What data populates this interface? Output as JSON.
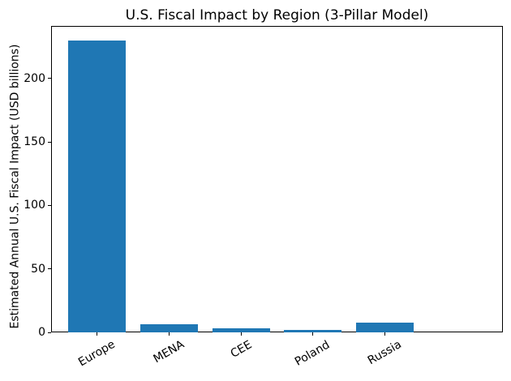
{
  "chart_data": {
    "type": "bar",
    "title": "U.S. Fiscal Impact by Region (3-Pillar Model)",
    "xlabel": "",
    "ylabel": "Estimated Annual U.S. Fiscal Impact (USD billions)",
    "categories": [
      "Europe",
      "MENA",
      "CEE",
      "Poland",
      "Russia"
    ],
    "values": [
      230,
      6.4,
      3.5,
      1.6,
      7.5
    ],
    "yticks": [
      0,
      50,
      100,
      150,
      200
    ],
    "ylim": [
      0,
      241.5
    ],
    "bar_color": "#1f77b4",
    "x_tick_rotation_deg": 30,
    "grid": false,
    "legend_position": "none"
  }
}
